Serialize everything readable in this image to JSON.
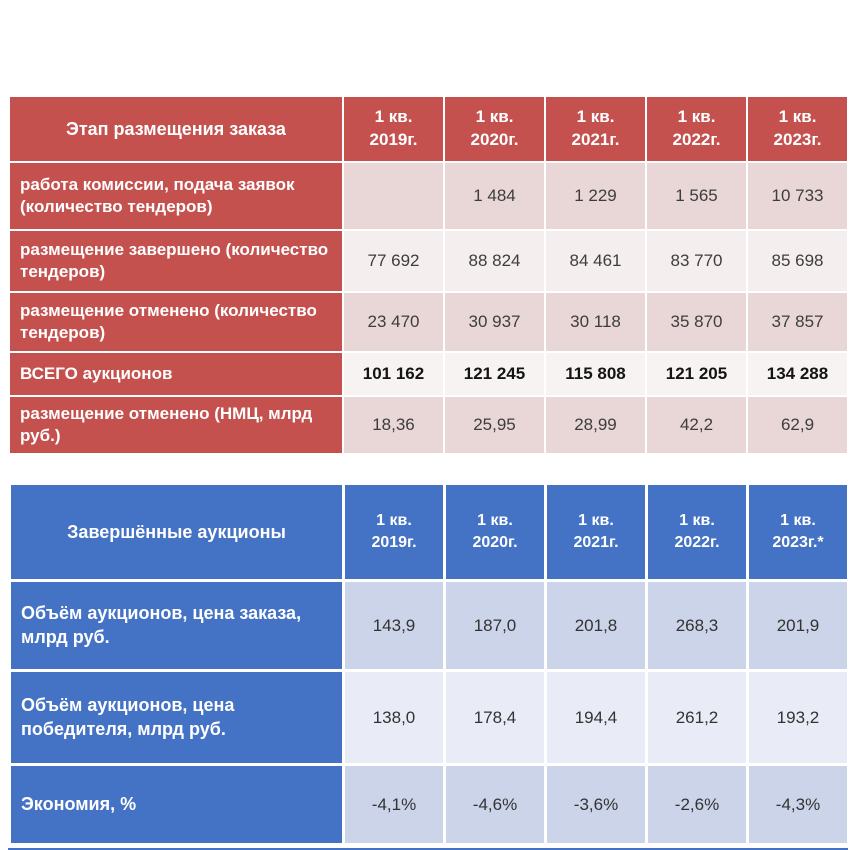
{
  "chart_data": [
    {
      "type": "table",
      "title": "Этап размещения заказа",
      "header": [
        "Этап размещения заказа",
        "1 кв.\n2019г.",
        "1 кв.\n2020г.",
        "1 кв.\n2021г.",
        "1 кв.\n2022г.",
        "1 кв.\n2023г."
      ],
      "rows": [
        {
          "label": "работа комиссии, подача заявок (количество тендеров)",
          "values": [
            "",
            "1 484",
            "1 229",
            "1 565",
            "10 733"
          ]
        },
        {
          "label": "размещение завершено (количество тендеров)",
          "values": [
            "77 692",
            "88 824",
            "84 461",
            "83 770",
            "85 698"
          ]
        },
        {
          "label": "размещение отменено (количество тендеров)",
          "values": [
            "23 470",
            "30 937",
            "30 118",
            "35 870",
            "37 857"
          ]
        },
        {
          "label": "ВСЕГО аукционов",
          "values": [
            "101 162",
            "121 245",
            "115 808",
            "121 205",
            "134 288"
          ],
          "bold": true
        },
        {
          "label": "размещение отменено (НМЦ, млрд руб.)",
          "values": [
            "18,36",
            "25,95",
            "28,99",
            "42,2",
            "62,9"
          ]
        }
      ],
      "style": {
        "accent": "#c4514e",
        "band_dark": "#e9d6d7",
        "band_light": "#f4eeee",
        "header_text": "#ffffff"
      }
    },
    {
      "type": "table",
      "title": "Завершённые аукционы",
      "header": [
        "Завершённые аукционы",
        "1 кв.\n2019г.",
        "1 кв.\n2020г.",
        "1 кв.\n2021г.",
        "1 кв.\n2022г.",
        "1 кв.\n2023г.*"
      ],
      "rows": [
        {
          "label": "Объём аукционов, цена заказа, млрд руб.",
          "values": [
            "143,9",
            "187,0",
            "201,8",
            "268,3",
            "201,9"
          ]
        },
        {
          "label": "Объём аукционов, цена победителя, млрд руб.",
          "values": [
            "138,0",
            "178,4",
            "194,4",
            "261,2",
            "193,2"
          ]
        },
        {
          "label": "Экономия, %",
          "values": [
            "-4,1%",
            "-4,6%",
            "-3,6%",
            "-2,6%",
            "-4,3%"
          ]
        }
      ],
      "style": {
        "accent": "#4472c4",
        "band_dark": "#ccd4e9",
        "band_light": "#e9ecf6",
        "header_text": "#ffffff"
      }
    }
  ]
}
